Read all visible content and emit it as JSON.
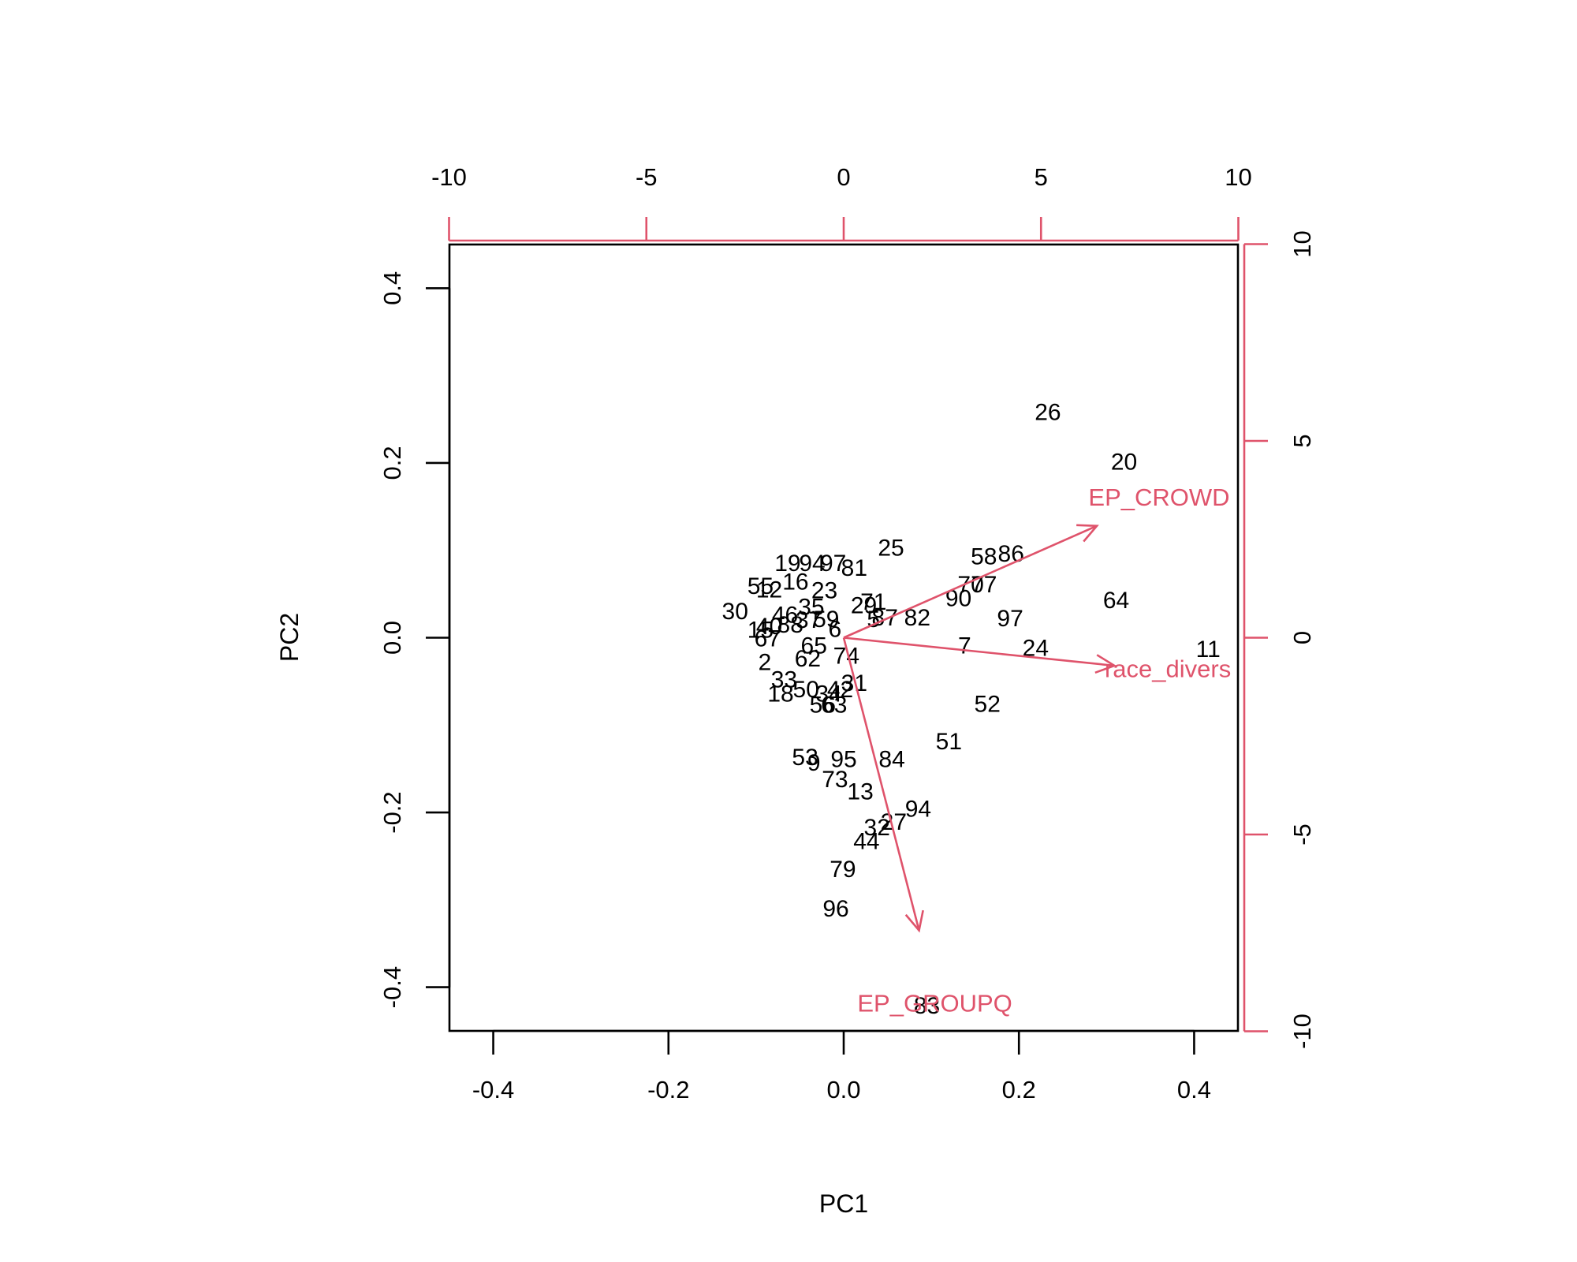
{
  "chart_data": {
    "type": "scatter",
    "subtype": "biplot",
    "xlabel": "PC1",
    "ylabel": "PC2",
    "xlim": [
      -0.45,
      0.45
    ],
    "ylim": [
      -0.45,
      0.45
    ],
    "x_ticks": [
      "-0.4",
      "-0.2",
      "0.0",
      "0.2",
      "0.4"
    ],
    "y_ticks": [
      "-0.4",
      "-0.2",
      "0.0",
      "0.2",
      "0.4"
    ],
    "x_tick_values": [
      -0.4,
      -0.2,
      0,
      0.2,
      0.4
    ],
    "y_tick_values": [
      -0.4,
      -0.2,
      0,
      0.2,
      0.4
    ],
    "top_ticks": [
      "-10",
      "-5",
      "0",
      "5",
      "10"
    ],
    "right_ticks": [
      "-10",
      "-5",
      "0",
      "5",
      "10"
    ],
    "secondary_tick_values": [
      -10,
      -5,
      0,
      5,
      10
    ],
    "secondary_scale": 22.2,
    "vector_color": "#DF536B",
    "point_color": "#000000",
    "grid": false,
    "points": [
      {
        "label": "26",
        "x": 0.233,
        "y": 0.259
      },
      {
        "label": "20",
        "x": 0.32,
        "y": 0.202
      },
      {
        "label": "25",
        "x": 0.054,
        "y": 0.104
      },
      {
        "label": "58",
        "x": 0.16,
        "y": 0.094
      },
      {
        "label": "86",
        "x": 0.191,
        "y": 0.097
      },
      {
        "label": "64",
        "x": 0.311,
        "y": 0.044
      },
      {
        "label": "11",
        "x": 0.416,
        "y": -0.012
      },
      {
        "label": "70",
        "x": 0.145,
        "y": 0.062
      },
      {
        "label": "77",
        "x": 0.16,
        "y": 0.062
      },
      {
        "label": "90",
        "x": 0.131,
        "y": 0.046
      },
      {
        "label": "97",
        "x": 0.19,
        "y": 0.023
      },
      {
        "label": "7",
        "x": 0.138,
        "y": -0.008
      },
      {
        "label": "24",
        "x": 0.219,
        "y": -0.011
      },
      {
        "label": "52",
        "x": 0.164,
        "y": -0.075
      },
      {
        "label": "51",
        "x": 0.12,
        "y": -0.118
      },
      {
        "label": "71",
        "x": 0.034,
        "y": 0.042
      },
      {
        "label": "29",
        "x": 0.023,
        "y": 0.038
      },
      {
        "label": "82",
        "x": 0.084,
        "y": 0.024
      },
      {
        "label": "87",
        "x": 0.047,
        "y": 0.024
      },
      {
        "label": "81",
        "x": 0.012,
        "y": 0.081
      },
      {
        "label": "74",
        "x": 0.003,
        "y": -0.02
      },
      {
        "label": "31",
        "x": 0.012,
        "y": -0.051
      },
      {
        "label": "84",
        "x": 0.055,
        "y": -0.138
      },
      {
        "label": "13",
        "x": 0.019,
        "y": -0.175
      },
      {
        "label": "94",
        "x": 0.085,
        "y": -0.195
      },
      {
        "label": "27",
        "x": 0.057,
        "y": -0.21
      },
      {
        "label": "32",
        "x": 0.038,
        "y": -0.216
      },
      {
        "label": "44",
        "x": 0.026,
        "y": -0.232
      },
      {
        "label": "79",
        "x": -0.001,
        "y": -0.264
      },
      {
        "label": "96",
        "x": -0.009,
        "y": -0.309
      },
      {
        "label": "83",
        "x": 0.095,
        "y": -0.42
      },
      {
        "label": "95",
        "x": 0.0,
        "y": -0.138
      },
      {
        "label": "9",
        "x": -0.034,
        "y": -0.142
      },
      {
        "label": "53",
        "x": -0.044,
        "y": -0.136
      },
      {
        "label": "73",
        "x": -0.01,
        "y": -0.161
      },
      {
        "label": "30",
        "x": -0.124,
        "y": 0.031
      },
      {
        "label": "2",
        "x": -0.09,
        "y": -0.027
      },
      {
        "label": "33",
        "x": -0.068,
        "y": -0.047
      },
      {
        "label": "18",
        "x": -0.072,
        "y": -0.063
      },
      {
        "label": "50",
        "x": -0.043,
        "y": -0.058
      },
      {
        "label": "62",
        "x": -0.041,
        "y": -0.023
      },
      {
        "label": "65",
        "x": -0.034,
        "y": -0.008
      },
      {
        "label": "67",
        "x": -0.087,
        "y": 0.0
      },
      {
        "label": "63",
        "x": -0.011,
        "y": -0.076
      },
      {
        "label": "56",
        "x": -0.024,
        "y": -0.076
      },
      {
        "label": "34",
        "x": -0.017,
        "y": -0.063
      },
      {
        "label": "42",
        "x": -0.004,
        "y": -0.058
      },
      {
        "label": "19",
        "x": -0.064,
        "y": 0.086
      },
      {
        "label": "94",
        "x": -0.036,
        "y": 0.086
      },
      {
        "label": "97",
        "x": -0.012,
        "y": 0.086
      },
      {
        "label": "23",
        "x": -0.022,
        "y": 0.055
      },
      {
        "label": "12",
        "x": -0.085,
        "y": 0.056
      },
      {
        "label": "55",
        "x": -0.095,
        "y": 0.06
      },
      {
        "label": "16",
        "x": -0.055,
        "y": 0.065
      },
      {
        "label": "35",
        "x": -0.037,
        "y": 0.036
      },
      {
        "label": "46",
        "x": -0.067,
        "y": 0.027
      },
      {
        "label": "40",
        "x": -0.085,
        "y": 0.014
      },
      {
        "label": "88",
        "x": -0.061,
        "y": 0.016
      },
      {
        "label": "6",
        "x": -0.01,
        "y": 0.011
      },
      {
        "label": "37",
        "x": -0.04,
        "y": 0.021
      },
      {
        "label": "59",
        "x": -0.02,
        "y": 0.022
      },
      {
        "label": "5",
        "x": 0.034,
        "y": 0.022
      },
      {
        "label": "15",
        "x": -0.095,
        "y": 0.01
      }
    ],
    "vectors": [
      {
        "label": "EP_CROWD",
        "x": 0.289,
        "y": 0.128,
        "label_x": 0.36,
        "label_y": 0.161
      },
      {
        "label": "race_divers",
        "x": 0.309,
        "y": -0.032,
        "label_x": 0.37,
        "label_y": -0.035
      },
      {
        "label": "EP_GROUPQ",
        "x": 0.086,
        "y": -0.335,
        "label_x": 0.104,
        "label_y": -0.418
      }
    ]
  }
}
